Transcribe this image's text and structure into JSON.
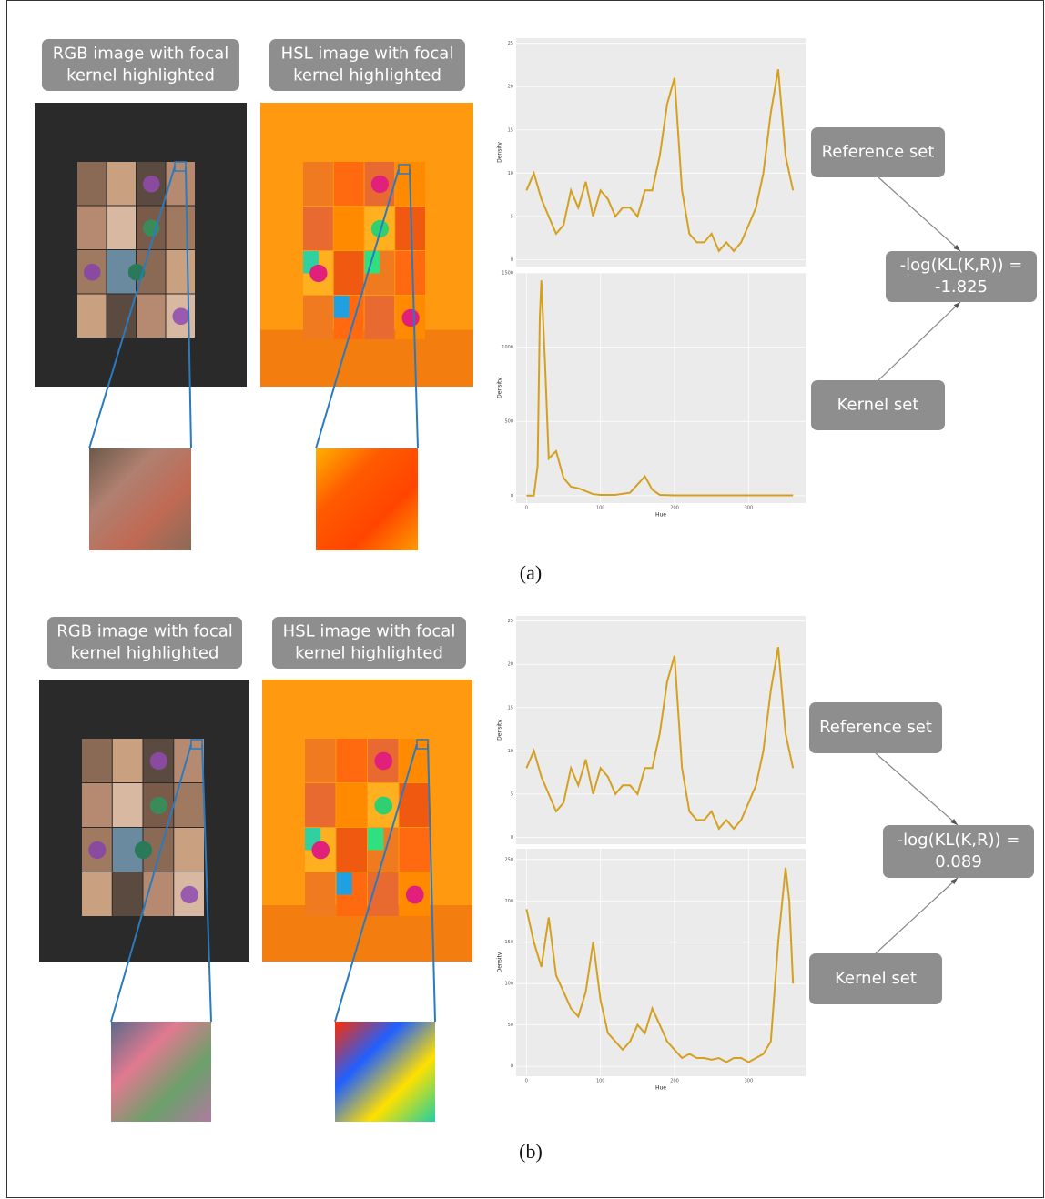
{
  "panels": [
    {
      "rgb_label": [
        "RGB image with focal",
        "kernel highlighted"
      ],
      "hsl_label": [
        "HSL image with focal",
        "kernel highlighted"
      ],
      "reference_label": "Reference set",
      "kl_label": [
        "-log(KL(K,R)) =",
        "-1.825"
      ],
      "kernel_label": "Kernel set",
      "caption": "(a)"
    },
    {
      "rgb_label": [
        "RGB image with focal",
        "kernel highlighted"
      ],
      "hsl_label": [
        "HSL image with focal",
        "kernel highlighted"
      ],
      "reference_label": "Reference set",
      "kl_label": [
        "-log(KL(K,R)) =",
        "0.089"
      ],
      "kernel_label": "Kernel set",
      "caption": "(b)"
    }
  ],
  "chart_data": [
    {
      "type": "line",
      "y_label": "Density",
      "color": "#d4a020",
      "x": [
        0,
        10,
        20,
        30,
        40,
        50,
        60,
        70,
        80,
        90,
        100,
        110,
        120,
        130,
        140,
        150,
        160,
        170,
        180,
        190,
        200,
        210,
        220,
        230,
        240,
        250,
        260,
        270,
        280,
        290,
        300,
        310,
        320,
        330,
        340,
        350,
        360
      ],
      "values": [
        8,
        10,
        7,
        5,
        3,
        4,
        8,
        6,
        9,
        5,
        8,
        7,
        5,
        6,
        6,
        5,
        8,
        8,
        12,
        18,
        21,
        8,
        3,
        2,
        2,
        3,
        1,
        2,
        1,
        2,
        4,
        6,
        10,
        17,
        22,
        12,
        8
      ],
      "xlim": [
        -14,
        377
      ],
      "ylim": [
        -0.8,
        25.6
      ],
      "yticks": [
        0,
        5,
        10,
        15,
        20,
        25
      ]
    },
    {
      "type": "line",
      "y_label": "Density",
      "x_label": "Hue",
      "color": "#d4a020",
      "x": [
        0,
        10,
        15,
        18,
        20,
        25,
        30,
        40,
        50,
        60,
        70,
        80,
        90,
        100,
        120,
        140,
        160,
        170,
        180,
        200,
        250,
        300,
        360
      ],
      "values": [
        0,
        0,
        200,
        1200,
        1450,
        900,
        250,
        300,
        120,
        60,
        50,
        30,
        10,
        5,
        5,
        20,
        130,
        40,
        5,
        2,
        2,
        2,
        2
      ],
      "xlim": [
        -14,
        377
      ],
      "ylim": [
        -50,
        1500
      ],
      "yticks": [
        0,
        500,
        1000,
        1500
      ],
      "xticks": [
        0,
        100,
        200,
        300
      ]
    },
    {
      "type": "line",
      "y_label": "Density",
      "color": "#d4a020",
      "x": [
        0,
        10,
        20,
        30,
        40,
        50,
        60,
        70,
        80,
        90,
        100,
        110,
        120,
        130,
        140,
        150,
        160,
        170,
        180,
        190,
        200,
        210,
        220,
        230,
        240,
        250,
        260,
        270,
        280,
        290,
        300,
        310,
        320,
        330,
        340,
        350,
        360
      ],
      "values": [
        8,
        10,
        7,
        5,
        3,
        4,
        8,
        6,
        9,
        5,
        8,
        7,
        5,
        6,
        6,
        5,
        8,
        8,
        12,
        18,
        21,
        8,
        3,
        2,
        2,
        3,
        1,
        2,
        1,
        2,
        4,
        6,
        10,
        17,
        22,
        12,
        8
      ],
      "xlim": [
        -14,
        377
      ],
      "ylim": [
        -0.8,
        25.6
      ],
      "yticks": [
        0,
        5,
        10,
        15,
        20,
        25
      ]
    },
    {
      "type": "line",
      "y_label": "Density",
      "x_label": "Hue",
      "color": "#d4a020",
      "x": [
        0,
        10,
        20,
        30,
        40,
        50,
        60,
        70,
        80,
        90,
        100,
        110,
        120,
        130,
        140,
        150,
        160,
        170,
        180,
        190,
        200,
        210,
        220,
        230,
        240,
        250,
        260,
        270,
        280,
        290,
        300,
        310,
        320,
        330,
        340,
        350,
        355,
        360
      ],
      "values": [
        190,
        150,
        120,
        180,
        110,
        90,
        70,
        60,
        90,
        150,
        80,
        40,
        30,
        20,
        30,
        50,
        40,
        70,
        50,
        30,
        20,
        10,
        15,
        10,
        10,
        8,
        10,
        5,
        10,
        10,
        5,
        10,
        15,
        30,
        150,
        240,
        200,
        100
      ],
      "xlim": [
        -14,
        377
      ],
      "ylim": [
        -12,
        263
      ],
      "yticks": [
        0,
        50,
        100,
        150,
        200,
        250
      ],
      "xticks": [
        0,
        100,
        200,
        300
      ]
    }
  ]
}
